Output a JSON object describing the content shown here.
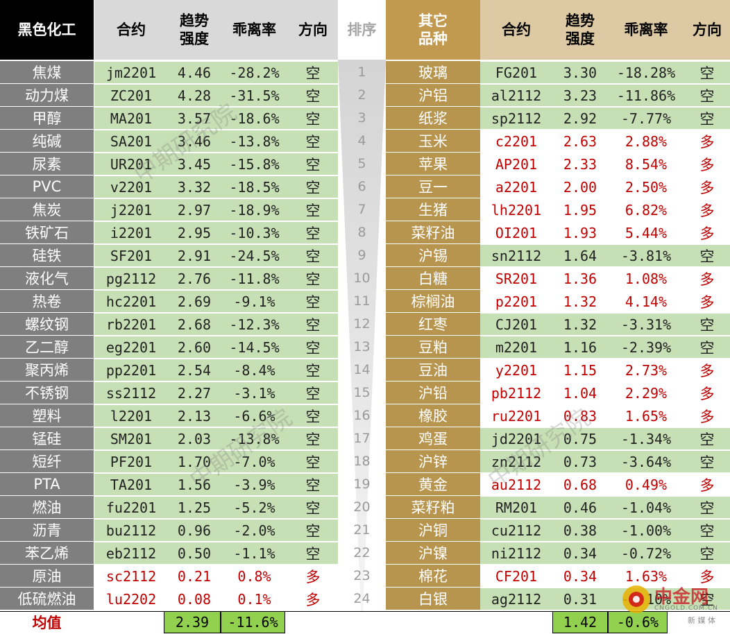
{
  "headers": {
    "left_group": "黑色化工",
    "contract": "合约",
    "trend_line1": "趋势",
    "trend_line2": "强度",
    "deviation": "乖离率",
    "direction": "方向",
    "rank": "排序",
    "right_group_line1": "其它",
    "right_group_line2": "品种"
  },
  "left_rows": [
    {
      "name": "焦煤",
      "contract": "jm2201",
      "strength": "4.46",
      "deviation": "-28.2%",
      "direction": "空"
    },
    {
      "name": "动力煤",
      "contract": "ZC201",
      "strength": "4.28",
      "deviation": "-31.5%",
      "direction": "空"
    },
    {
      "name": "甲醇",
      "contract": "MA201",
      "strength": "3.57",
      "deviation": "-18.6%",
      "direction": "空"
    },
    {
      "name": "纯碱",
      "contract": "SA201",
      "strength": "3.46",
      "deviation": "-13.8%",
      "direction": "空"
    },
    {
      "name": "尿素",
      "contract": "UR201",
      "strength": "3.45",
      "deviation": "-15.8%",
      "direction": "空"
    },
    {
      "name": "PVC",
      "contract": "v2201",
      "strength": "3.32",
      "deviation": "-18.5%",
      "direction": "空"
    },
    {
      "name": "焦炭",
      "contract": "j2201",
      "strength": "2.97",
      "deviation": "-18.9%",
      "direction": "空"
    },
    {
      "name": "铁矿石",
      "contract": "i2201",
      "strength": "2.95",
      "deviation": "-10.3%",
      "direction": "空"
    },
    {
      "name": "硅铁",
      "contract": "SF201",
      "strength": "2.91",
      "deviation": "-24.5%",
      "direction": "空"
    },
    {
      "name": "液化气",
      "contract": "pg2112",
      "strength": "2.76",
      "deviation": "-11.8%",
      "direction": "空"
    },
    {
      "name": "热卷",
      "contract": "hc2201",
      "strength": "2.69",
      "deviation": "-9.1%",
      "direction": "空"
    },
    {
      "name": "螺纹钢",
      "contract": "rb2201",
      "strength": "2.68",
      "deviation": "-12.3%",
      "direction": "空"
    },
    {
      "name": "乙二醇",
      "contract": "eg2201",
      "strength": "2.60",
      "deviation": "-14.5%",
      "direction": "空"
    },
    {
      "name": "聚丙烯",
      "contract": "pp2201",
      "strength": "2.54",
      "deviation": "-8.4%",
      "direction": "空"
    },
    {
      "name": "不锈钢",
      "contract": "ss2112",
      "strength": "2.27",
      "deviation": "-3.1%",
      "direction": "空"
    },
    {
      "name": "塑料",
      "contract": "l2201",
      "strength": "2.13",
      "deviation": "-6.6%",
      "direction": "空"
    },
    {
      "name": "锰硅",
      "contract": "SM201",
      "strength": "2.03",
      "deviation": "-13.8%",
      "direction": "空"
    },
    {
      "name": "短纤",
      "contract": "PF201",
      "strength": "1.70",
      "deviation": "-7.0%",
      "direction": "空"
    },
    {
      "name": "PTA",
      "contract": "TA201",
      "strength": "1.56",
      "deviation": "-3.9%",
      "direction": "空"
    },
    {
      "name": "燃油",
      "contract": "fu2201",
      "strength": "1.25",
      "deviation": "-5.2%",
      "direction": "空"
    },
    {
      "name": "沥青",
      "contract": "bu2112",
      "strength": "0.96",
      "deviation": "-2.0%",
      "direction": "空"
    },
    {
      "name": "苯乙烯",
      "contract": "eb2112",
      "strength": "0.50",
      "deviation": "-1.1%",
      "direction": "空"
    },
    {
      "name": "原油",
      "contract": "sc2112",
      "strength": "0.21",
      "deviation": "0.8%",
      "direction": "多"
    },
    {
      "name": "低硫燃油",
      "contract": "lu2202",
      "strength": "0.08",
      "deviation": "0.1%",
      "direction": "多"
    }
  ],
  "right_rows": [
    {
      "name": "玻璃",
      "contract": "FG201",
      "strength": "3.30",
      "deviation": "-18.28%",
      "direction": "空"
    },
    {
      "name": "沪铝",
      "contract": "al2112",
      "strength": "3.23",
      "deviation": "-11.86%",
      "direction": "空"
    },
    {
      "name": "纸浆",
      "contract": "sp2112",
      "strength": "2.92",
      "deviation": "-7.77%",
      "direction": "空"
    },
    {
      "name": "玉米",
      "contract": "c2201",
      "strength": "2.63",
      "deviation": "2.88%",
      "direction": "多"
    },
    {
      "name": "苹果",
      "contract": "AP201",
      "strength": "2.33",
      "deviation": "8.54%",
      "direction": "多"
    },
    {
      "name": "豆一",
      "contract": "a2201",
      "strength": "2.00",
      "deviation": "2.50%",
      "direction": "多"
    },
    {
      "name": "生猪",
      "contract": "lh2201",
      "strength": "1.95",
      "deviation": "6.82%",
      "direction": "多"
    },
    {
      "name": "菜籽油",
      "contract": "OI201",
      "strength": "1.93",
      "deviation": "5.44%",
      "direction": "多"
    },
    {
      "name": "沪锡",
      "contract": "sn2112",
      "strength": "1.64",
      "deviation": "-3.81%",
      "direction": "空"
    },
    {
      "name": "白糖",
      "contract": "SR201",
      "strength": "1.36",
      "deviation": "1.08%",
      "direction": "多"
    },
    {
      "name": "棕榈油",
      "contract": "p2201",
      "strength": "1.32",
      "deviation": "4.14%",
      "direction": "多"
    },
    {
      "name": "红枣",
      "contract": "CJ201",
      "strength": "1.32",
      "deviation": "-3.31%",
      "direction": "空"
    },
    {
      "name": "豆粕",
      "contract": "m2201",
      "strength": "1.16",
      "deviation": "-2.39%",
      "direction": "空"
    },
    {
      "name": "豆油",
      "contract": "y2201",
      "strength": "1.15",
      "deviation": "2.73%",
      "direction": "多"
    },
    {
      "name": "沪铅",
      "contract": "pb2112",
      "strength": "1.04",
      "deviation": "2.29%",
      "direction": "多"
    },
    {
      "name": "橡胶",
      "contract": "ru2201",
      "strength": "0.83",
      "deviation": "1.65%",
      "direction": "多"
    },
    {
      "name": "鸡蛋",
      "contract": "jd2201",
      "strength": "0.75",
      "deviation": "-1.34%",
      "direction": "空"
    },
    {
      "name": "沪锌",
      "contract": "zn2112",
      "strength": "0.73",
      "deviation": "-3.64%",
      "direction": "空"
    },
    {
      "name": "黄金",
      "contract": "au2112",
      "strength": "0.68",
      "deviation": "0.49%",
      "direction": "多"
    },
    {
      "name": "菜籽粕",
      "contract": "RM201",
      "strength": "0.46",
      "deviation": "-1.04%",
      "direction": "空"
    },
    {
      "name": "沪铜",
      "contract": "cu2112",
      "strength": "0.38",
      "deviation": "-1.00%",
      "direction": "空"
    },
    {
      "name": "沪镍",
      "contract": "ni2112",
      "strength": "0.34",
      "deviation": "-0.72%",
      "direction": "空"
    },
    {
      "name": "棉花",
      "contract": "CF201",
      "strength": "0.34",
      "deviation": "1.63%",
      "direction": "多"
    },
    {
      "name": "白银",
      "contract": "ag2112",
      "strength": "0.31",
      "deviation": "-0.10%",
      "direction": "空"
    }
  ],
  "ranks": [
    "1",
    "2",
    "3",
    "4",
    "5",
    "6",
    "7",
    "8",
    "9",
    "10",
    "11",
    "12",
    "13",
    "14",
    "15",
    "16",
    "17",
    "18",
    "19",
    "20",
    "21",
    "22",
    "23",
    "24"
  ],
  "footer": {
    "label": "均值",
    "left_strength": "2.39",
    "left_deviation": "-11.6%",
    "right_strength": "1.42",
    "right_deviation": "-0.6%"
  },
  "watermark_text": "中期研究院",
  "logo": {
    "name": "中金网",
    "domain": "CNGOLD.COM.CN",
    "tagline": "新 媒 体"
  },
  "colors": {
    "header_left_bg": "#000000",
    "header_mid_bg": "#d9d9d9",
    "header_right_bg": "#c19a4f",
    "header_right_light_bg": "#ddc9a3",
    "name_left_bg": "#7f7f7f",
    "name_right_bg": "#b8954f",
    "short_bg": "#c6dfb4",
    "long_bg": "#ffffff",
    "long_text": "#c00000",
    "footer_value_bg": "#92d050",
    "footer_label_text": "#c00000"
  }
}
